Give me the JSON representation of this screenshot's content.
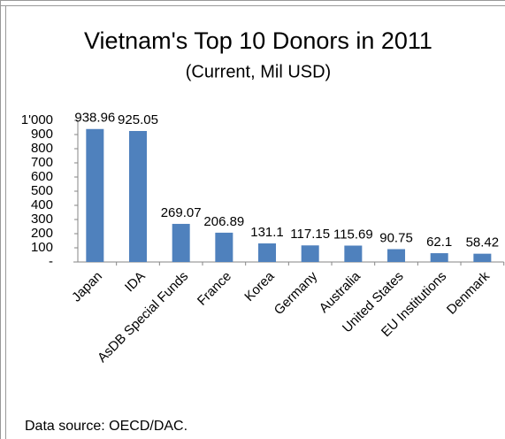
{
  "chart_data": {
    "type": "bar",
    "title": "Vietnam's Top 10 Donors in 2011",
    "subtitle": "(Current, Mil USD)",
    "categories": [
      "Japan",
      "IDA",
      "AsDB Special Funds",
      "France",
      "Korea",
      "Germany",
      "Australia",
      "United States",
      "EU Institutions",
      "Denmark"
    ],
    "values": [
      938.96,
      925.05,
      269.07,
      206.89,
      131.1,
      117.15,
      115.69,
      90.75,
      62.1,
      58.42
    ],
    "color": "#4f81bd",
    "ylim": [
      0,
      1000
    ],
    "yticks": [
      {
        "value": 0,
        "label": "-"
      },
      100,
      200,
      300,
      400,
      500,
      600,
      700,
      800,
      900,
      {
        "value": 1000,
        "label": "1'000"
      }
    ],
    "source": "Data source: OECD/DAC."
  }
}
